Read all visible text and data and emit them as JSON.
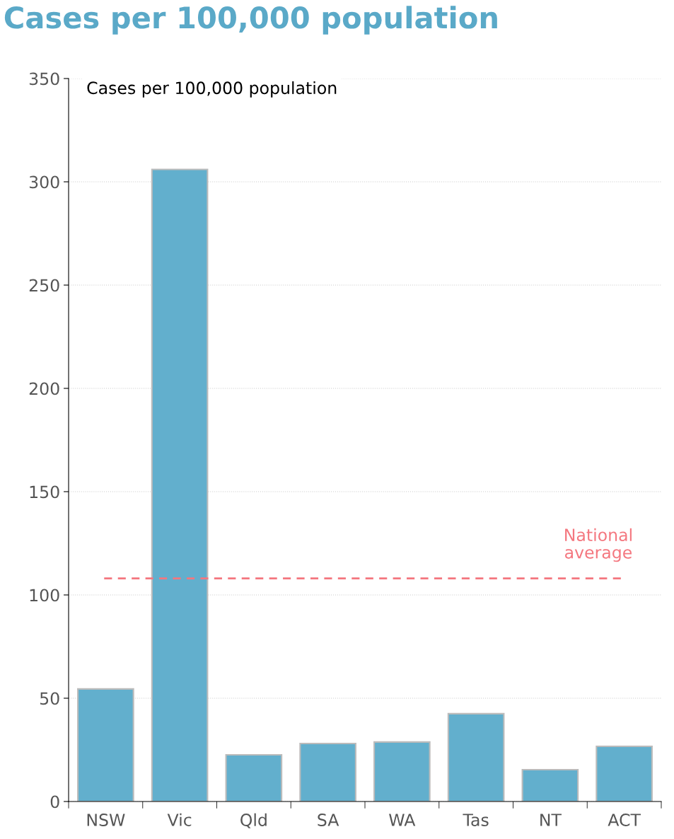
{
  "chart_data": {
    "type": "bar",
    "title": "Cases per 100,000 population",
    "ylabel": "Cases per 100,000 population",
    "categories": [
      "NSW",
      "Vic",
      "Qld",
      "SA",
      "WA",
      "Tas",
      "NT",
      "ACT"
    ],
    "values": [
      54.5,
      306,
      22.6,
      28.1,
      28.8,
      42.5,
      15.4,
      26.7
    ],
    "color": "#62afcd",
    "ylim": [
      0,
      350
    ],
    "yticks": [
      0,
      50,
      100,
      150,
      200,
      250,
      300,
      350
    ],
    "grid": "y",
    "ref_lines": [
      {
        "axis": "y",
        "value": 108,
        "label": "National\naverage",
        "color": "#f4777f",
        "line_style": "dashed"
      }
    ]
  }
}
